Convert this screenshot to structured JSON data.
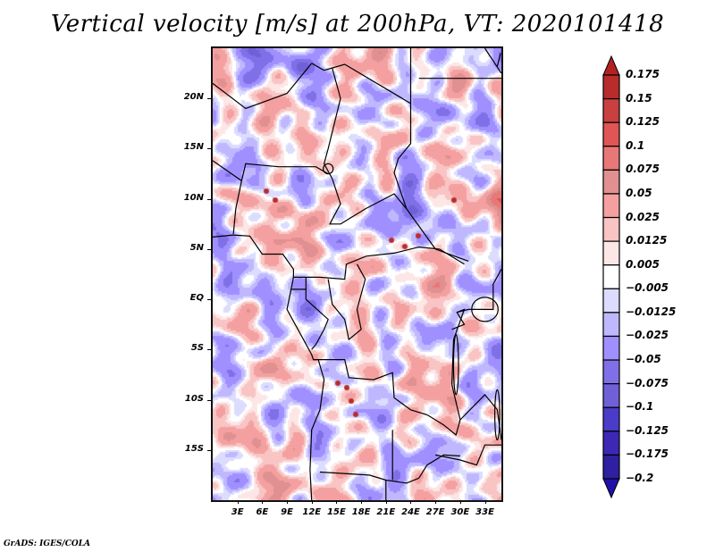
{
  "chart_data": {
    "type": "heatmap",
    "title": "Vertical velocity [m/s] at 200hPa, VT: 2020101418",
    "variable": "Vertical velocity",
    "units": "m/s",
    "level": "200hPa",
    "valid_time": "2020101418",
    "xlabel": "",
    "ylabel": "",
    "x_range_deg_east": [
      0,
      35
    ],
    "y_range_deg_north": [
      -20,
      25
    ],
    "x_ticks": [
      "3E",
      "6E",
      "9E",
      "12E",
      "15E",
      "18E",
      "21E",
      "24E",
      "27E",
      "30E",
      "33E"
    ],
    "x_tick_values": [
      3,
      6,
      9,
      12,
      15,
      18,
      21,
      24,
      27,
      30,
      33
    ],
    "y_ticks": [
      "20N",
      "15N",
      "10N",
      "5N",
      "EQ",
      "5S",
      "10S",
      "15S"
    ],
    "y_tick_values": [
      20,
      15,
      10,
      5,
      0,
      -5,
      -10,
      -15
    ],
    "grid": false,
    "legend": {
      "type": "colorbar",
      "placement": "right",
      "levels": [
        "0.175",
        "0.15",
        "0.125",
        "0.1",
        "0.075",
        "0.05",
        "0.025",
        "0.0125",
        "0.005",
        "-0.005",
        "-0.0125",
        "-0.025",
        "-0.05",
        "-0.075",
        "-0.1",
        "-0.125",
        "-0.175",
        "-0.2"
      ],
      "colors": [
        "#b22222",
        "#b82c2c",
        "#c84040",
        "#e05555",
        "#e87878",
        "#e09090",
        "#f5a0a0",
        "#f8c4c4",
        "#fde6e6",
        "#ffffff",
        "#dcdcff",
        "#c0b8ff",
        "#a090ff",
        "#8070e8",
        "#7060d8",
        "#4a3cc8",
        "#3c28b4",
        "#2e20a0",
        "#2010a8"
      ],
      "extend": "both"
    },
    "description": "Shaded field of 200hPa vertical velocity over Central/Southern Africa; mixed positive (red) and negative (blue) small-scale patterns with political borders overlaid."
  },
  "credit": "GrADS: IGES/COLA"
}
